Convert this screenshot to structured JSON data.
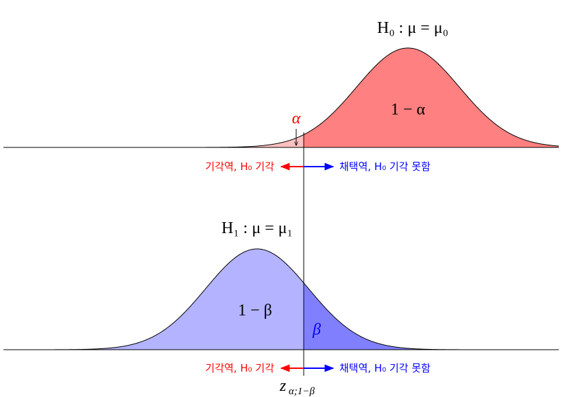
{
  "top": {
    "hypothesis": "H₀ : μ = μ₀",
    "area": "1 − α",
    "tail": "α",
    "reject": "기각역, H₀ 기각",
    "accept": "채택역, H₀ 기각 못함"
  },
  "bottom": {
    "hypothesis": "H₁ : μ = μ₁",
    "area": "1 − β",
    "tail": "β",
    "reject": "기각역, H₀ 기각",
    "accept": "채택역, H₀ 기각 못함"
  },
  "critical": {
    "symbol": "z",
    "subscript": "α;1−β"
  }
}
